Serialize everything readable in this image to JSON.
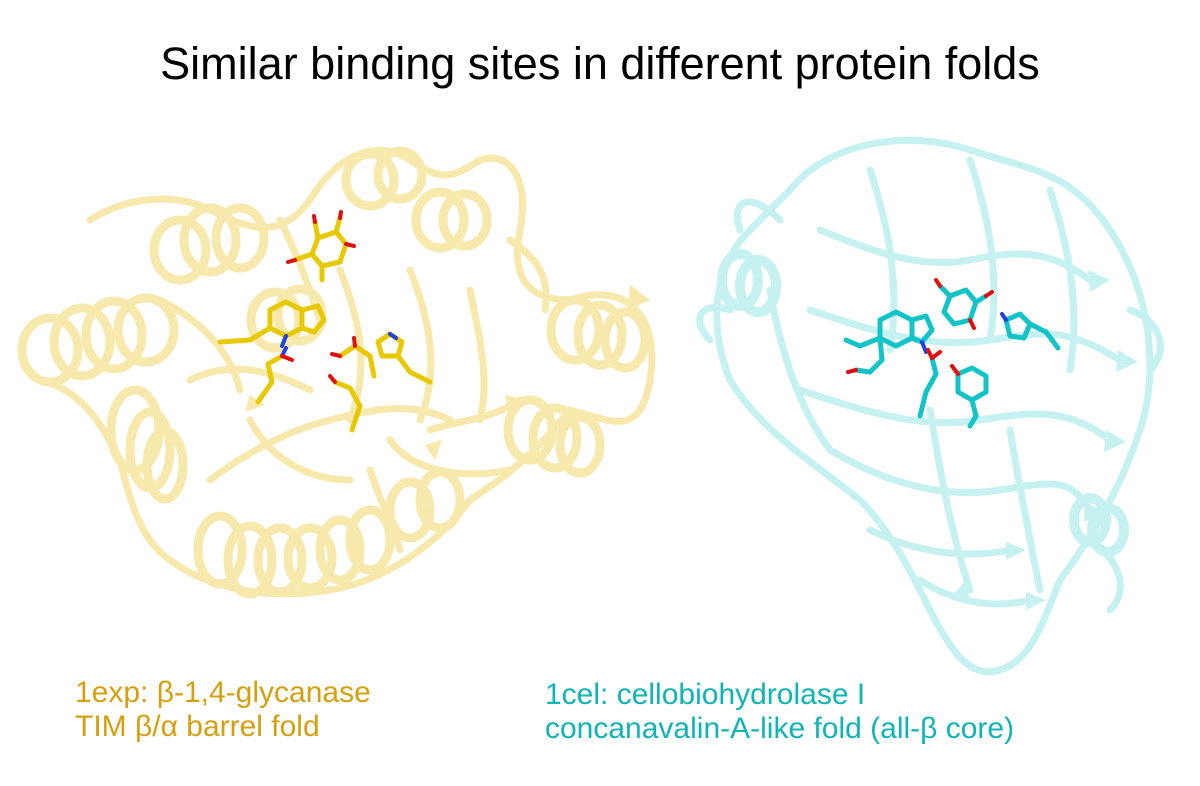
{
  "title": "Similar binding sites in different protein folds",
  "colors": {
    "left_ribbon": "#f5de7a",
    "left_sticks": "#e8c800",
    "left_caption": "#d4a010",
    "right_ribbon": "#9eeaea",
    "right_sticks": "#12c4c8",
    "right_caption": "#10b4b4",
    "oxygen": "#e01010",
    "nitrogen": "#2040e0"
  },
  "left": {
    "caption_line1": "1exp: β-1,4-glycanase",
    "caption_line2": "TIM β/α barrel fold"
  },
  "right": {
    "caption_line1": "1cel: cellobiohydrolase I",
    "caption_line2": "concanavalin-A-like fold (all-β core)"
  }
}
